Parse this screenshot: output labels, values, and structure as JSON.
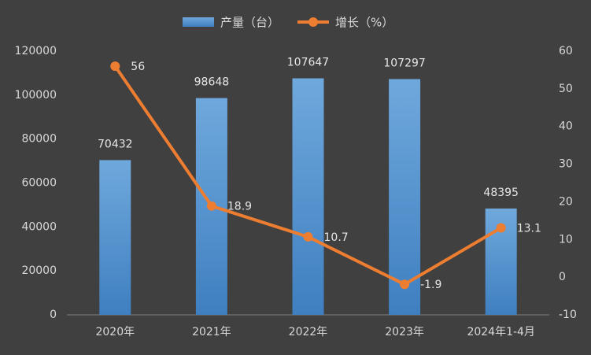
{
  "chart_data": {
    "type": "bar",
    "categories": [
      "2020年",
      "2021年",
      "2022年",
      "2023年",
      "2024年1-4月"
    ],
    "series": [
      {
        "name": "产量（台）",
        "type": "bar",
        "color": "#5b9bd5",
        "values": [
          70432,
          98648,
          107647,
          107297,
          48395
        ]
      },
      {
        "name": "增长（%）",
        "type": "line",
        "axis": "y2",
        "color": "#ed7d31",
        "values": [
          56,
          18.9,
          10.7,
          -1.9,
          13.1
        ]
      }
    ],
    "ylim": [
      0,
      120000
    ],
    "yticks": [
      0,
      20000,
      40000,
      60000,
      80000,
      100000,
      120000
    ],
    "y2lim": [
      -10,
      60
    ],
    "y2ticks": [
      -10,
      0,
      10,
      20,
      30,
      40,
      50,
      60
    ],
    "grid": false,
    "legend": "top"
  }
}
